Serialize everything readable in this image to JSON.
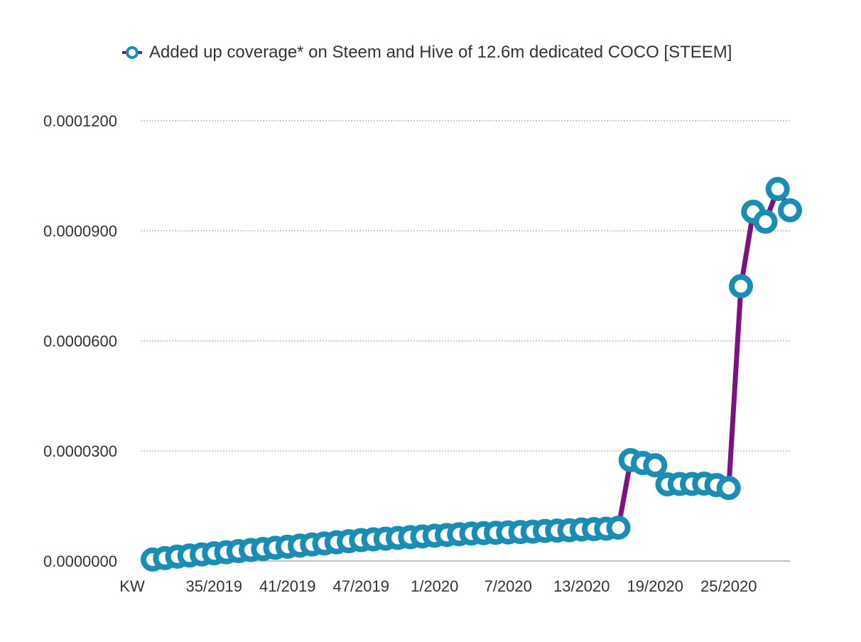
{
  "chart_data": {
    "type": "line",
    "title": "",
    "xlabel": "",
    "ylabel": "",
    "x_axis_prefix_label": "KW",
    "legend": {
      "position": "top",
      "entries": [
        "Added up coverage* on Steem and Hive of 12.6m dedicated COCO [STEEM]"
      ]
    },
    "ylim": [
      0,
      0.00012
    ],
    "yticks": [
      0,
      3e-05,
      6e-05,
      9e-05,
      0.00012
    ],
    "ytick_labels": [
      "0.0000000",
      "0.0000300",
      "0.0000600",
      "0.0000900",
      "0.0001200"
    ],
    "grid": "horizontal dotted",
    "xtick_labels": [
      {
        "index": 5,
        "label": "35/2019"
      },
      {
        "index": 11,
        "label": "41/2019"
      },
      {
        "index": 17,
        "label": "47/2019"
      },
      {
        "index": 23,
        "label": "1/2020"
      },
      {
        "index": 29,
        "label": "7/2020"
      },
      {
        "index": 35,
        "label": "13/2020"
      },
      {
        "index": 41,
        "label": "19/2020"
      },
      {
        "index": 47,
        "label": "25/2020"
      }
    ],
    "series": [
      {
        "name": "Added up coverage* on Steem and Hive of 12.6m dedicated COCO [STEEM]",
        "line_color": "#7b1280",
        "marker_color": "#1a8db5",
        "values": [
          4e-07,
          8e-07,
          1.2e-06,
          1.5e-06,
          1.8e-06,
          2.1e-06,
          2.4e-06,
          2.7e-06,
          3e-06,
          3.3e-06,
          3.6e-06,
          3.9e-06,
          4.2e-06,
          4.5e-06,
          4.8e-06,
          5.1e-06,
          5.4e-06,
          5.7e-06,
          5.9e-06,
          6.1e-06,
          6.3e-06,
          6.5e-06,
          6.7e-06,
          6.9e-06,
          7.1e-06,
          7.3e-06,
          7.5e-06,
          7.6e-06,
          7.7e-06,
          7.8e-06,
          7.9e-06,
          8e-06,
          8.2e-06,
          8.3e-06,
          8.4e-06,
          8.6e-06,
          8.7e-06,
          8.8e-06,
          9.1e-06,
          2.75e-05,
          2.67e-05,
          2.61e-05,
          2.09e-05,
          2.1e-05,
          2.1e-05,
          2.11e-05,
          2.07e-05,
          1.99e-05,
          7.49e-05,
          9.52e-05,
          9.25e-05,
          0.0001014,
          9.56e-05
        ]
      }
    ]
  }
}
